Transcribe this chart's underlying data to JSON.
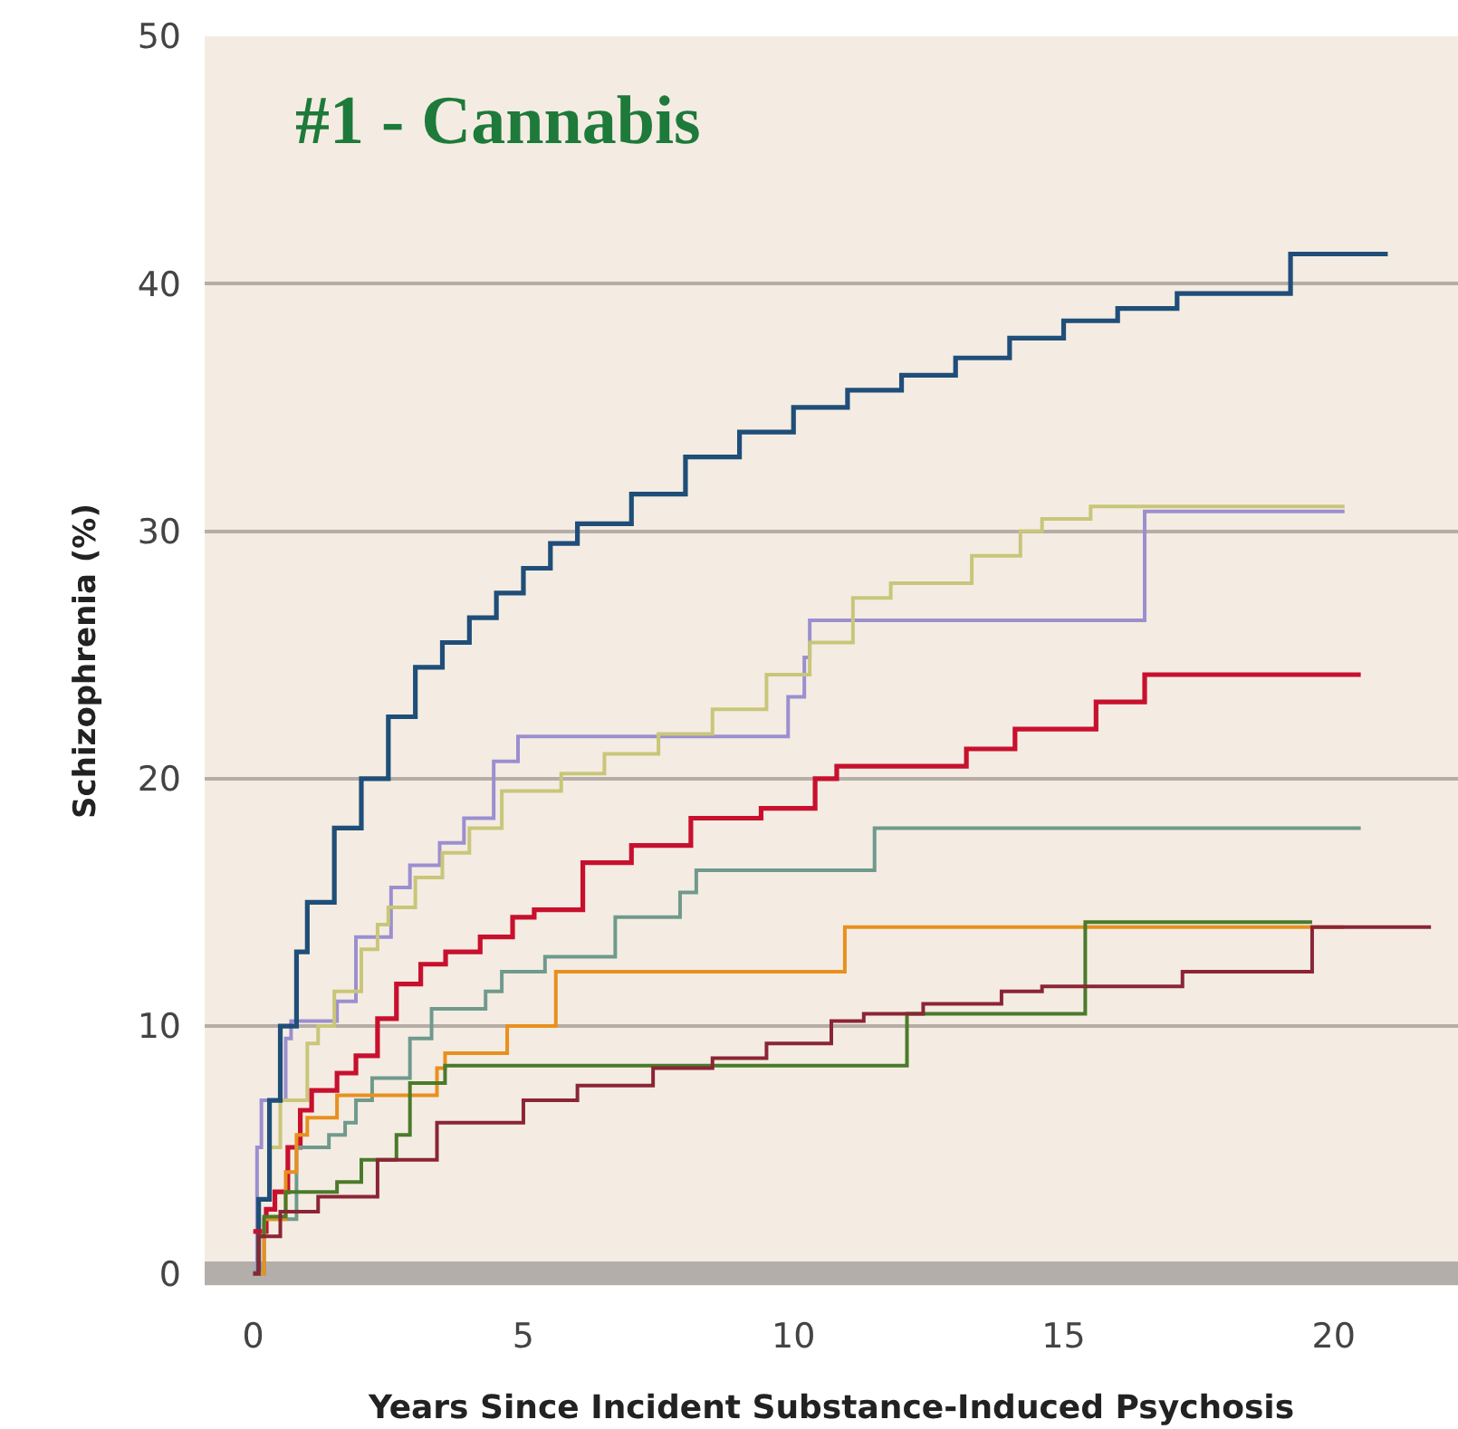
{
  "chart_data": {
    "type": "step",
    "title": "#1 - Cannabis",
    "xlabel": "Years Since Incident Substance-Induced Psychosis",
    "ylabel": "Schizophrenia (%)",
    "xlim": [
      -0.9,
      22.3
    ],
    "xticks": [
      0,
      5,
      10,
      15,
      20
    ],
    "ylim": [
      -0.5,
      50
    ],
    "yticks": [
      0,
      10,
      20,
      30,
      40,
      50
    ],
    "grid": "y",
    "series": [
      {
        "color": "#9b8fd0",
        "x": [
          0,
          0.07,
          0.15,
          0.6,
          0.7,
          1.55,
          1.9,
          2.55,
          2.9,
          3.45,
          3.9,
          4.45,
          4.9,
          9.9,
          10.2,
          10.3,
          16.5,
          20.2
        ],
        "values": [
          0,
          5.1,
          7,
          9.5,
          10.2,
          11,
          13.6,
          15.6,
          16.5,
          17.4,
          18.4,
          20.7,
          21.7,
          23.3,
          24.9,
          26.4,
          30.8,
          30.8
        ]
      },
      {
        "color": "#c9c67a",
        "x": [
          0,
          0.1,
          0.3,
          0.5,
          1,
          1.2,
          1.5,
          2,
          2.3,
          2.5,
          3,
          3.5,
          4,
          4.6,
          5.7,
          6.5,
          7.5,
          8.5,
          9.5,
          10.3,
          11.1,
          11.8,
          13.3,
          14.2,
          14.6,
          15.5,
          20.2
        ],
        "values": [
          0,
          3,
          5.1,
          7,
          9.3,
          10,
          11.4,
          13.1,
          14.1,
          14.8,
          16,
          17,
          18,
          19.5,
          20.2,
          21,
          21.8,
          22.8,
          24.2,
          25.5,
          27.3,
          27.9,
          29,
          30,
          30.5,
          31,
          31
        ]
      },
      {
        "color": "#1f4e79",
        "x": [
          0,
          0.1,
          0.3,
          0.5,
          0.8,
          1,
          1.5,
          2,
          2.5,
          3,
          3.5,
          4,
          4.5,
          5,
          5.5,
          6,
          7,
          8,
          9,
          10,
          11,
          12,
          13,
          14,
          15,
          16,
          17.1,
          19.2,
          21
        ],
        "values": [
          0,
          3,
          7,
          10,
          13,
          15,
          18,
          20,
          22.5,
          24.5,
          25.5,
          26.5,
          27.5,
          28.5,
          29.5,
          30.3,
          31.5,
          33,
          34,
          35,
          35.7,
          36.3,
          37,
          37.8,
          38.5,
          39,
          39.6,
          41.2,
          41.2
        ]
      },
      {
        "color": "#c8102e",
        "x": [
          0,
          0.24,
          0.4,
          0.64,
          0.87,
          1.08,
          1.55,
          1.9,
          2.3,
          2.65,
          3.1,
          3.56,
          4.2,
          4.8,
          5.2,
          6.1,
          7,
          8.1,
          9.4,
          10.4,
          10.8,
          13.2,
          14.1,
          15.6,
          16.5,
          20.5
        ],
        "values": [
          1.7,
          2.6,
          3.3,
          5.1,
          6.6,
          7.4,
          8.1,
          8.8,
          10.3,
          11.7,
          12.5,
          13,
          13.6,
          14.4,
          14.7,
          16.6,
          17.3,
          18.4,
          18.8,
          20,
          20.5,
          21.2,
          22,
          23.1,
          24.2,
          24.2
        ]
      },
      {
        "color": "#6f9a8d",
        "x": [
          0,
          0.2,
          0.8,
          1.4,
          1.7,
          1.9,
          2.2,
          2.9,
          3.3,
          4.3,
          4.6,
          5.4,
          6.7,
          7.9,
          8.2,
          11.5,
          20.5
        ],
        "values": [
          0,
          2.2,
          5.1,
          5.6,
          6.1,
          7,
          7.9,
          9.5,
          10.7,
          11.4,
          12.2,
          12.8,
          14.4,
          15.4,
          16.3,
          18,
          18
        ]
      },
      {
        "color": "#e8901e",
        "x": [
          0,
          0.2,
          0.6,
          0.8,
          1,
          1.55,
          3.4,
          3.55,
          4.7,
          5.6,
          10.95,
          20.2
        ],
        "values": [
          0,
          2.2,
          4.1,
          5.6,
          6.3,
          7.2,
          8.3,
          8.9,
          10,
          12.2,
          14,
          14
        ]
      },
      {
        "color": "#4a7a2a",
        "x": [
          0,
          0.1,
          0.2,
          0.6,
          1.55,
          2,
          2.65,
          2.9,
          3.55,
          12.1,
          15.4,
          19.6
        ],
        "values": [
          0,
          1.5,
          2.3,
          3.3,
          3.7,
          4.6,
          5.6,
          7.7,
          8.4,
          10.5,
          14.2,
          14.2
        ]
      },
      {
        "color": "#8b2535",
        "x": [
          0,
          0.1,
          0.5,
          1.2,
          2.3,
          3.4,
          5,
          6,
          7.4,
          8.5,
          9.5,
          10.7,
          11.3,
          12.4,
          13.85,
          14.6,
          17.2,
          19.6,
          21.8
        ],
        "values": [
          0,
          1.5,
          2.5,
          3.1,
          4.6,
          6.1,
          7,
          7.6,
          8.3,
          8.7,
          9.3,
          10.2,
          10.5,
          10.9,
          11.4,
          11.6,
          12.2,
          14,
          14
        ]
      }
    ],
    "line_style": "solid"
  }
}
